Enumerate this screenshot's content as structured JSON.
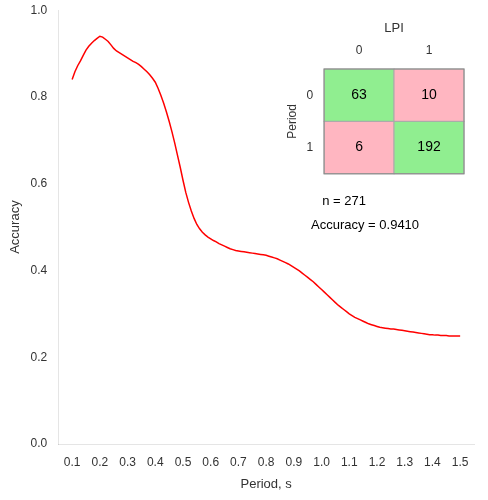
{
  "chart_data": [
    {
      "type": "line",
      "x": [
        0.1,
        0.11,
        0.12,
        0.13,
        0.14,
        0.15,
        0.16,
        0.17,
        0.18,
        0.19,
        0.2,
        0.21,
        0.22,
        0.23,
        0.24,
        0.25,
        0.26,
        0.27,
        0.28,
        0.29,
        0.3,
        0.31,
        0.32,
        0.33,
        0.34,
        0.35,
        0.36,
        0.37,
        0.38,
        0.39,
        0.4,
        0.41,
        0.42,
        0.43,
        0.44,
        0.45,
        0.46,
        0.47,
        0.48,
        0.49,
        0.5,
        0.51,
        0.52,
        0.53,
        0.54,
        0.55,
        0.56,
        0.57,
        0.58,
        0.59,
        0.6,
        0.61,
        0.62,
        0.63,
        0.64,
        0.65,
        0.66,
        0.67,
        0.68,
        0.69,
        0.7,
        0.71,
        0.72,
        0.73,
        0.74,
        0.75,
        0.76,
        0.77,
        0.78,
        0.79,
        0.8,
        0.81,
        0.82,
        0.83,
        0.84,
        0.85,
        0.86,
        0.87,
        0.88,
        0.89,
        0.9,
        0.91,
        0.92,
        0.93,
        0.94,
        0.95,
        0.96,
        0.97,
        0.98,
        0.99,
        1.0,
        1.01,
        1.02,
        1.03,
        1.04,
        1.05,
        1.06,
        1.07,
        1.08,
        1.09,
        1.1,
        1.11,
        1.12,
        1.13,
        1.14,
        1.15,
        1.16,
        1.17,
        1.18,
        1.19,
        1.2,
        1.21,
        1.22,
        1.23,
        1.24,
        1.25,
        1.26,
        1.27,
        1.28,
        1.29,
        1.3,
        1.31,
        1.32,
        1.33,
        1.34,
        1.35,
        1.36,
        1.37,
        1.38,
        1.39,
        1.4,
        1.41,
        1.42,
        1.43,
        1.44,
        1.45,
        1.46,
        1.47,
        1.48,
        1.49,
        1.5
      ],
      "values": [
        0.84,
        0.858,
        0.872,
        0.883,
        0.896,
        0.908,
        0.917,
        0.924,
        0.93,
        0.935,
        0.94,
        0.938,
        0.933,
        0.928,
        0.92,
        0.912,
        0.906,
        0.902,
        0.898,
        0.894,
        0.89,
        0.886,
        0.882,
        0.879,
        0.875,
        0.87,
        0.864,
        0.858,
        0.851,
        0.843,
        0.834,
        0.82,
        0.804,
        0.786,
        0.766,
        0.744,
        0.72,
        0.694,
        0.666,
        0.638,
        0.608,
        0.58,
        0.557,
        0.537,
        0.52,
        0.506,
        0.496,
        0.488,
        0.482,
        0.477,
        0.473,
        0.469,
        0.466,
        0.462,
        0.459,
        0.456,
        0.453,
        0.45,
        0.448,
        0.446,
        0.445,
        0.444,
        0.443,
        0.442,
        0.441,
        0.44,
        0.439,
        0.438,
        0.437,
        0.436,
        0.435,
        0.433,
        0.431,
        0.429,
        0.427,
        0.424,
        0.421,
        0.418,
        0.415,
        0.411,
        0.407,
        0.403,
        0.399,
        0.394,
        0.389,
        0.384,
        0.379,
        0.374,
        0.368,
        0.362,
        0.356,
        0.35,
        0.344,
        0.338,
        0.332,
        0.326,
        0.32,
        0.315,
        0.31,
        0.305,
        0.3,
        0.296,
        0.292,
        0.289,
        0.286,
        0.283,
        0.28,
        0.277,
        0.275,
        0.273,
        0.271,
        0.269,
        0.268,
        0.267,
        0.266,
        0.265,
        0.265,
        0.264,
        0.263,
        0.262,
        0.261,
        0.26,
        0.259,
        0.258,
        0.257,
        0.256,
        0.255,
        0.254,
        0.253,
        0.252,
        0.252,
        0.251,
        0.251,
        0.25,
        0.25,
        0.25,
        0.249,
        0.249,
        0.249,
        0.249,
        0.249
      ],
      "color": "#ff0000",
      "xlabel": "Period, s",
      "ylabel": "Accuracy",
      "xlim": [
        0.05,
        1.55
      ],
      "ylim": [
        0.0,
        1.0
      ],
      "xticks": [
        0.1,
        0.2,
        0.3,
        0.4,
        0.5,
        0.6,
        0.7,
        0.8,
        0.9,
        {
          "value": 1.0,
          "label": "1.0"
        },
        1.1,
        1.2,
        1.3,
        1.4,
        1.5
      ],
      "yticks": [
        {
          "value": 0.0,
          "label": "0.0"
        },
        0.2,
        0.4,
        0.6,
        0.8,
        {
          "value": 1.0,
          "label": "1.0"
        }
      ],
      "grid": false,
      "annotations": [
        "n = 271",
        "Accuracy = 0.9410"
      ]
    },
    {
      "type": "heatmap",
      "xlabel": "LPI",
      "ylabel": "Period",
      "x_categories": [
        "0",
        "1"
      ],
      "y_categories": [
        "0",
        "1"
      ],
      "cells": [
        [
          63,
          10
        ],
        [
          6,
          192
        ]
      ],
      "colors": [
        [
          "#90ee90",
          "#ffb6c1"
        ],
        [
          "#ffb6c1",
          "#90ee90"
        ]
      ],
      "data_labels": true
    }
  ]
}
